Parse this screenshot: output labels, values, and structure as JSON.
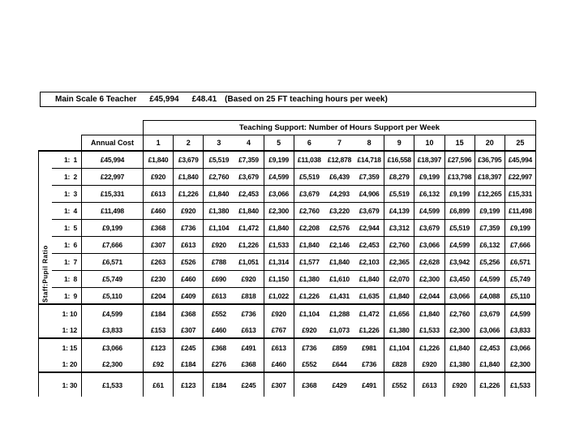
{
  "title": {
    "teacher": "Main Scale 6 Teacher",
    "annual_salary": "£45,994",
    "hourly_rate": "£48.41",
    "note": "(Based on 25 FT teaching hours per week)"
  },
  "table": {
    "support_header": "Teaching Support: Number of Hours Support per Week",
    "annual_cost_header": "Annual Cost",
    "ratio_axis_label": "Staff:Pupil Ratio",
    "hour_columns": [
      "1",
      "2",
      "3",
      "4",
      "5",
      "6",
      "7",
      "8",
      "9",
      "10",
      "15",
      "20",
      "25"
    ],
    "rows": [
      {
        "ratio": "1:  1",
        "annual": "£45,994",
        "values": [
          "£1,840",
          "£3,679",
          "£5,519",
          "£7,359",
          "£9,199",
          "£11,038",
          "£12,878",
          "£14,718",
          "£16,558",
          "£18,397",
          "£27,596",
          "£36,795",
          "£45,994"
        ]
      },
      {
        "ratio": "1:  2",
        "annual": "£22,997",
        "values": [
          "£920",
          "£1,840",
          "£2,760",
          "£3,679",
          "£4,599",
          "£5,519",
          "£6,439",
          "£7,359",
          "£8,279",
          "£9,199",
          "£13,798",
          "£18,397",
          "£22,997"
        ]
      },
      {
        "ratio": "1:  3",
        "annual": "£15,331",
        "values": [
          "£613",
          "£1,226",
          "£1,840",
          "£2,453",
          "£3,066",
          "£3,679",
          "£4,293",
          "£4,906",
          "£5,519",
          "£6,132",
          "£9,199",
          "£12,265",
          "£15,331"
        ]
      },
      {
        "ratio": "1:  4",
        "annual": "£11,498",
        "values": [
          "£460",
          "£920",
          "£1,380",
          "£1,840",
          "£2,300",
          "£2,760",
          "£3,220",
          "£3,679",
          "£4,139",
          "£4,599",
          "£6,899",
          "£9,199",
          "£11,498"
        ]
      },
      {
        "ratio": "1:  5",
        "annual": "£9,199",
        "values": [
          "£368",
          "£736",
          "£1,104",
          "£1,472",
          "£1,840",
          "£2,208",
          "£2,576",
          "£2,944",
          "£3,312",
          "£3,679",
          "£5,519",
          "£7,359",
          "£9,199"
        ]
      },
      {
        "ratio": "1:  6",
        "annual": "£7,666",
        "values": [
          "£307",
          "£613",
          "£920",
          "£1,226",
          "£1,533",
          "£1,840",
          "£2,146",
          "£2,453",
          "£2,760",
          "£3,066",
          "£4,599",
          "£6,132",
          "£7,666"
        ]
      },
      {
        "ratio": "1:  7",
        "annual": "£6,571",
        "values": [
          "£263",
          "£526",
          "£788",
          "£1,051",
          "£1,314",
          "£1,577",
          "£1,840",
          "£2,103",
          "£2,365",
          "£2,628",
          "£3,942",
          "£5,256",
          "£6,571"
        ]
      },
      {
        "ratio": "1:  8",
        "annual": "£5,749",
        "values": [
          "£230",
          "£460",
          "£690",
          "£920",
          "£1,150",
          "£1,380",
          "£1,610",
          "£1,840",
          "£2,070",
          "£2,300",
          "£3,450",
          "£4,599",
          "£5,749"
        ]
      },
      {
        "ratio": "1:  9",
        "annual": "£5,110",
        "values": [
          "£204",
          "£409",
          "£613",
          "£818",
          "£1,022",
          "£1,226",
          "£1,431",
          "£1,635",
          "£1,840",
          "£2,044",
          "£3,066",
          "£4,088",
          "£5,110"
        ]
      },
      {
        "ratio": "1: 10",
        "annual": "£4,599",
        "values": [
          "£184",
          "£368",
          "£552",
          "£736",
          "£920",
          "£1,104",
          "£1,288",
          "£1,472",
          "£1,656",
          "£1,840",
          "£2,760",
          "£3,679",
          "£4,599"
        ]
      },
      {
        "ratio": "1: 12",
        "annual": "£3,833",
        "values": [
          "£153",
          "£307",
          "£460",
          "£613",
          "£767",
          "£920",
          "£1,073",
          "£1,226",
          "£1,380",
          "£1,533",
          "£2,300",
          "£3,066",
          "£3,833"
        ]
      },
      {
        "ratio": "1: 15",
        "annual": "£3,066",
        "values": [
          "£123",
          "£245",
          "£368",
          "£491",
          "£613",
          "£736",
          "£859",
          "£981",
          "£1,104",
          "£1,226",
          "£1,840",
          "£2,453",
          "£3,066"
        ]
      },
      {
        "ratio": "1: 20",
        "annual": "£2,300",
        "values": [
          "£92",
          "£184",
          "£276",
          "£368",
          "£460",
          "£552",
          "£644",
          "£736",
          "£828",
          "£920",
          "£1,380",
          "£1,840",
          "£2,300"
        ]
      },
      {
        "ratio": "1: 30",
        "annual": "£1,533",
        "values": [
          "£61",
          "£123",
          "£184",
          "£245",
          "£307",
          "£368",
          "£429",
          "£491",
          "£552",
          "£613",
          "£920",
          "£1,226",
          "£1,533"
        ]
      }
    ]
  },
  "colors": {
    "border": "#000000",
    "text": "#000000",
    "background": "#ffffff"
  }
}
